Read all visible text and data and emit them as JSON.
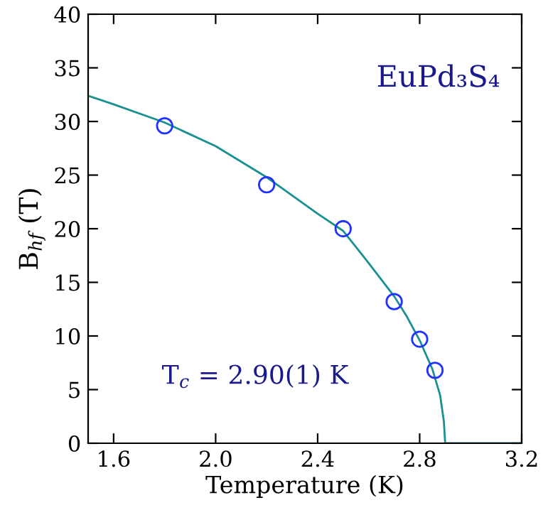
{
  "chart_data": {
    "type": "scatter",
    "title": "EuPd₃S₄",
    "xlabel": "Temperature (K)",
    "ylabel": "B$_{hf}$ (T)",
    "annotations": [
      "T$_{c}$ = 2.90(1) K"
    ],
    "series": [
      {
        "color": "#2233ff",
        "x": [
          1.8,
          2.2,
          2.5,
          2.7,
          2.8,
          2.86
        ],
        "values": [
          29.6,
          24.1,
          20.0,
          13.2,
          9.7,
          6.8
        ],
        "marker": "circle"
      },
      {
        "type": "line",
        "color": "#1a9090",
        "x": [
          1.5,
          1.6,
          1.8,
          2.0,
          2.2,
          2.4,
          2.5,
          2.6,
          2.7,
          2.75,
          2.8,
          2.85,
          2.88,
          2.895,
          2.9,
          3.2
        ],
        "values": [
          32.4,
          31.6,
          29.9,
          27.7,
          24.8,
          21.4,
          19.8,
          16.8,
          13.7,
          11.8,
          9.6,
          6.9,
          4.5,
          2.0,
          0,
          0
        ],
        "marker": "none",
        "line_style": "solid"
      }
    ],
    "xlim": [
      1.5,
      3.2
    ],
    "ylim": [
      0,
      40
    ],
    "xticks": [
      1.6,
      {
        "value": 2,
        "label": "2.0"
      },
      2.4,
      2.8,
      3.2
    ],
    "yticks": [
      0,
      5,
      10,
      15,
      20,
      25,
      30,
      35,
      40
    ],
    "grid": false,
    "legend": false
  }
}
